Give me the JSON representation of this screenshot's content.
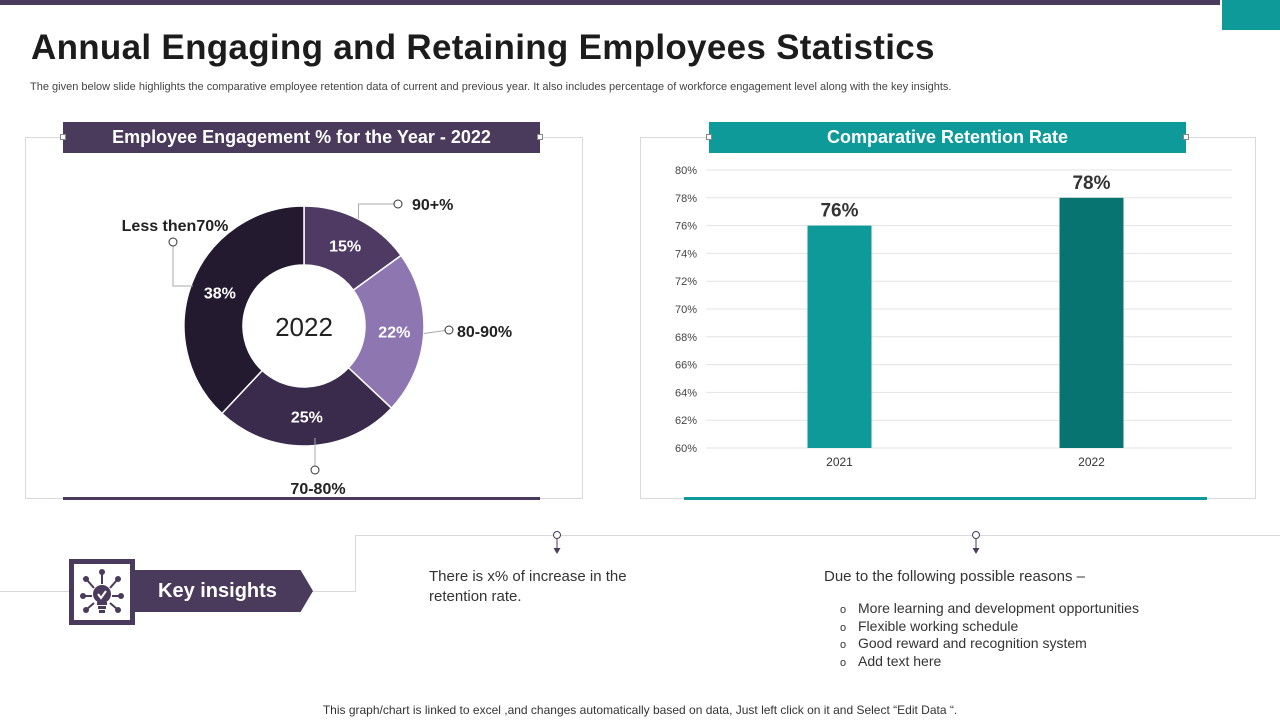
{
  "title": "Annual Engaging and Retaining Employees Statistics",
  "subtitle": "The given below slide highlights the comparative employee retention data of current and previous year. It also includes percentage of workforce engagement level along with the key insights.",
  "colors": {
    "dark_purple": "#4a3a5c",
    "teal": "#0e9a98",
    "dark_teal": "#087472"
  },
  "chart_data": [
    {
      "type": "pie",
      "variant": "donut",
      "title": "Employee Engagement % for the Year - 2022",
      "center_label": "2022",
      "slices": [
        {
          "label": "90+%",
          "value": 15,
          "value_label": "15%",
          "color": "#4e3a63"
        },
        {
          "label": "80-90%",
          "value": 22,
          "value_label": "22%",
          "color": "#8e76b0"
        },
        {
          "label": "70-80%",
          "value": 25,
          "value_label": "25%",
          "color": "#3a2a4c"
        },
        {
          "label": "Less then70%",
          "value": 38,
          "value_label": "38%",
          "color": "#241a30"
        }
      ]
    },
    {
      "type": "bar",
      "title": "Comparative Retention Rate",
      "categories": [
        "2021",
        "2022"
      ],
      "values": [
        76,
        78
      ],
      "value_labels": [
        "76%",
        "78%"
      ],
      "bar_colors": [
        "#0e9a98",
        "#087472"
      ],
      "ylim": [
        60,
        80
      ],
      "yticks": [
        "60%",
        "62%",
        "64%",
        "66%",
        "68%",
        "70%",
        "72%",
        "74%",
        "76%",
        "78%",
        "80%"
      ],
      "grid": true
    }
  ],
  "insights": {
    "label": "Key insights",
    "point1": "There is x% of increase in the retention rate.",
    "point2": "Due to the following possible reasons –",
    "reasons": [
      "More learning and development opportunities",
      "Flexible working schedule",
      "Good reward and recognition system",
      "Add text here"
    ],
    "bullet": "o"
  },
  "icons": {
    "insight": "lightbulb-network-icon",
    "pin": "pin-marker-icon"
  },
  "footer": "This graph/chart is linked to excel ,and changes automatically based on data, Just left click on it and Select “Edit Data “."
}
